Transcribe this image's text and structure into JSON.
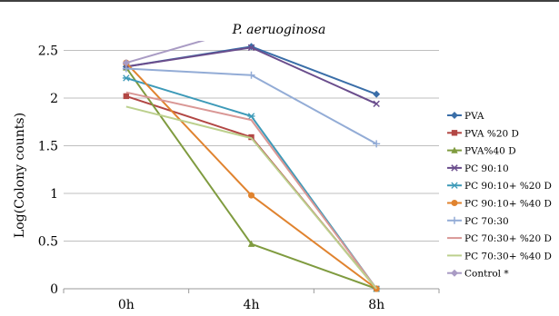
{
  "chart_data": {
    "type": "line",
    "title": "P. aeruoginosa",
    "xlabel": "",
    "ylabel": "Log(Colony counts)",
    "categories": [
      "0h",
      "4h",
      "8h"
    ],
    "ylim": [
      0,
      2.6
    ],
    "yticks": [
      "0",
      "0.5",
      "1",
      "1.5",
      "2",
      "2.5"
    ],
    "grid": true,
    "legend_position": "right",
    "series": [
      {
        "name": "PVA",
        "values": [
          2.33,
          2.54,
          2.04
        ],
        "color": "#3a6ea8",
        "marker": "diamond"
      },
      {
        "name": "PVA %20 D",
        "values": [
          2.02,
          1.59,
          0.0
        ],
        "color": "#b24744",
        "marker": "square"
      },
      {
        "name": "PVA%40 D",
        "values": [
          2.32,
          0.47,
          0.0
        ],
        "color": "#7f9b3f",
        "marker": "triangle"
      },
      {
        "name": "PC 90:10",
        "values": [
          2.33,
          2.53,
          1.94
        ],
        "color": "#6a4d8c",
        "marker": "x"
      },
      {
        "name": "PC 90:10+ %20 D",
        "values": [
          2.21,
          1.81,
          0.0
        ],
        "color": "#3d9ab8",
        "marker": "asterisk"
      },
      {
        "name": "PC 90:10+ %40 D",
        "values": [
          2.37,
          0.98,
          0.0
        ],
        "color": "#e0832f",
        "marker": "circle"
      },
      {
        "name": "PC 70:30",
        "values": [
          2.31,
          2.24,
          1.52
        ],
        "color": "#93acd6",
        "marker": "plus"
      },
      {
        "name": "PC 70:30+ %20 D",
        "values": [
          2.06,
          1.77,
          0.0
        ],
        "color": "#d99795",
        "marker": "none"
      },
      {
        "name": "PC 70:30+ %40 D",
        "values": [
          1.91,
          1.58,
          0.0
        ],
        "color": "#bcd08d",
        "marker": "none"
      },
      {
        "name": "Control *",
        "values": [
          2.37,
          2.75,
          null
        ],
        "color": "#a99bc4",
        "marker": "diamond"
      }
    ]
  }
}
